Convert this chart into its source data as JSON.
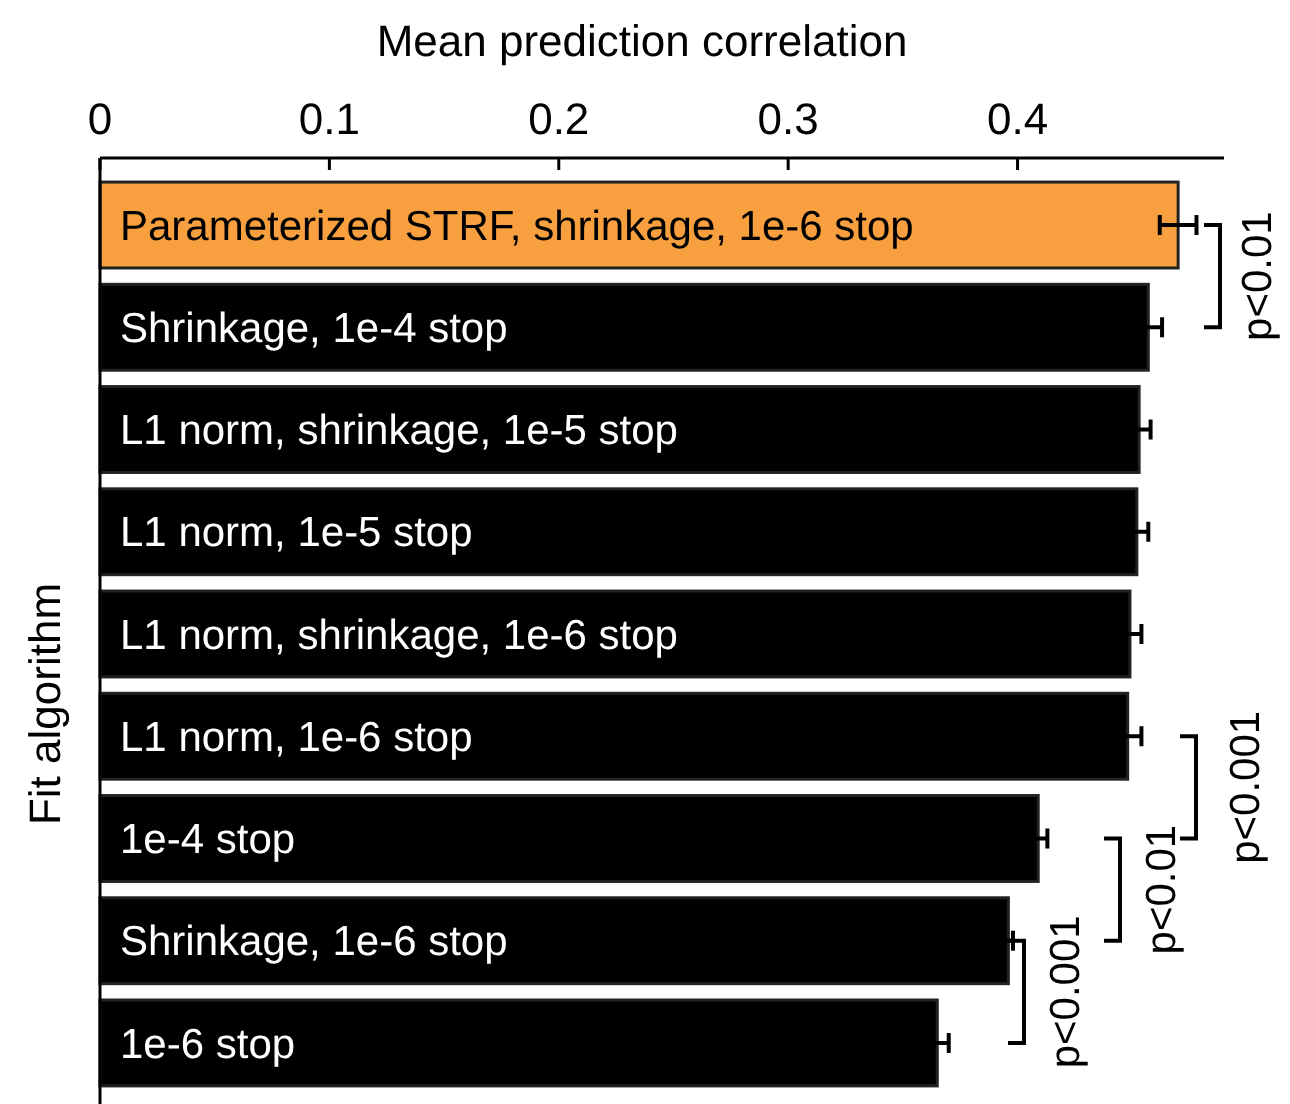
{
  "chart_data": {
    "type": "bar",
    "orientation": "horizontal",
    "xlabel": "Mean prediction correlation",
    "ylabel": "Fit algorithm",
    "categories": [
      "Parameterized STRF, shrinkage, 1e-6 stop",
      "Shrinkage, 1e-4 stop",
      "L1 norm, shrinkage, 1e-5 stop",
      "L1 norm, 1e-5 stop",
      "L1 norm, shrinkage, 1e-6 stop",
      "L1 norm, 1e-6 stop",
      "1e-4 stop",
      "Shrinkage, 1e-6 stop",
      "1e-6 stop"
    ],
    "values": [
      0.47,
      0.457,
      0.453,
      0.452,
      0.449,
      0.448,
      0.409,
      0.396,
      0.365
    ],
    "errors": [
      0.008,
      0.006,
      0.005,
      0.005,
      0.005,
      0.006,
      0.004,
      0.002,
      0.005
    ],
    "colors": [
      "#f8a040",
      "#000000",
      "#000000",
      "#000000",
      "#000000",
      "#000000",
      "#000000",
      "#000000",
      "#000000"
    ],
    "xlim": [
      0,
      0.49
    ],
    "xticks": [
      0,
      0.1,
      0.2,
      0.3,
      0.4
    ],
    "grid": false,
    "annotations": [
      "p<0.01",
      "p<0.001",
      "p<0.01",
      "p<0.001"
    ]
  }
}
